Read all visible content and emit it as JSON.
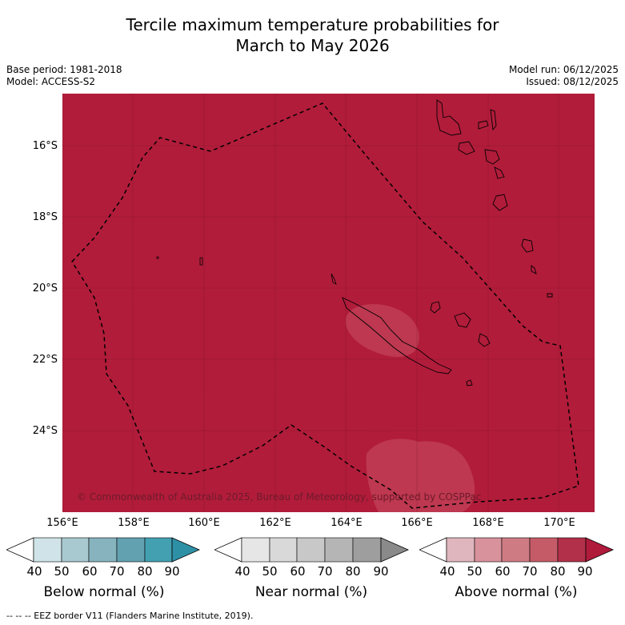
{
  "title_line1": "Tercile maximum temperature probabilities for",
  "title_line2": "March to May 2026",
  "base_period": "Base period: 1981-2018",
  "model": "Model: ACCESS-S2",
  "model_run": "Model run: 06/12/2025",
  "issued": "Issued: 08/12/2025",
  "copyright": "© Commonwealth of Australia 2025, Bureau of Meteorology, supported by COSPPac",
  "lat_labels": [
    "16°S",
    "18°S",
    "20°S",
    "22°S",
    "24°S"
  ],
  "lon_labels": [
    "156°E",
    "158°E",
    "160°E",
    "162°E",
    "164°E",
    "166°E",
    "168°E",
    "170°E"
  ],
  "colorbars": [
    {
      "name": "Below normal (%)",
      "colors": [
        "#cfe3e8",
        "#a8c9cf",
        "#86b3bd",
        "#62a1b0",
        "#43a0b1",
        "#2e90a5"
      ]
    },
    {
      "name": "Near normal (%)",
      "colors": [
        "#e6e6e6",
        "#d9d9d9",
        "#c8c8c8",
        "#b5b5b5",
        "#9e9e9e",
        "#8a8a8a"
      ]
    },
    {
      "name": "Above normal (%)",
      "colors": [
        "#e0b6be",
        "#d8929c",
        "#cf7b83",
        "#c45b67",
        "#b2304a",
        "#b01a3b"
      ]
    }
  ],
  "tick_labels": [
    "40",
    "50",
    "60",
    "70",
    "80",
    "90"
  ],
  "footer": "--  --  -- EEZ border V11 (Flanders Marine Institute, 2019).",
  "colors": {
    "map_fill": "#b11c3a",
    "patch": "#c24258"
  }
}
